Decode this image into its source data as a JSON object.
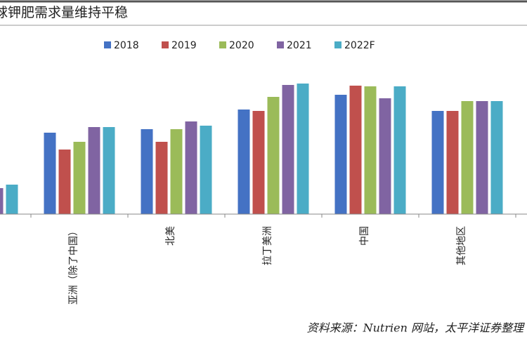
{
  "chart_data": {
    "type": "bar",
    "title": "球钾肥需求量维持平稳",
    "source": "资料来源：Nutrien 网站，太平洋证券整理",
    "categories": [
      null,
      "亚洲（除了中国）",
      "北美",
      "拉丁美洲",
      "中国",
      "其他地区"
    ],
    "series": [
      {
        "name": "2018",
        "color": "#4472c4",
        "values": [
          null,
          116,
          121,
          149,
          170,
          147
        ]
      },
      {
        "name": "2019",
        "color": "#c0504d",
        "values": [
          null,
          92,
          103,
          147,
          183,
          147
        ]
      },
      {
        "name": "2020",
        "color": "#9bbb59",
        "values": [
          null,
          103,
          121,
          167,
          182,
          161
        ]
      },
      {
        "name": "2021",
        "color": "#8064a2",
        "values": [
          37,
          124,
          132,
          184,
          165,
          161
        ]
      },
      {
        "name": "2022F",
        "color": "#4bacc6",
        "values": [
          42,
          124,
          126,
          186,
          182,
          161
        ]
      }
    ],
    "ylim": [
      0,
      200
    ]
  }
}
